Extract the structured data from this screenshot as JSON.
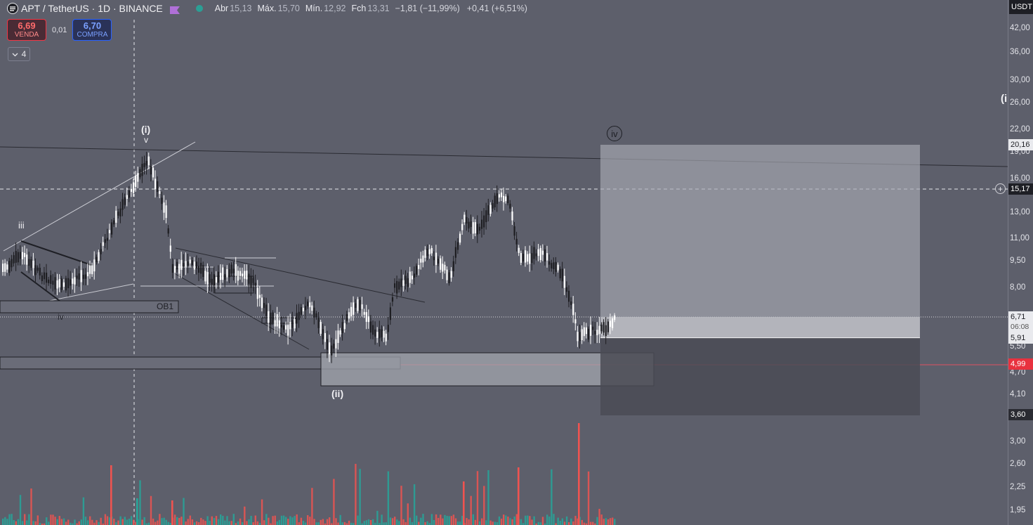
{
  "header": {
    "title": "APT / TetherUS · 1D · BINANCE",
    "ohlc": [
      {
        "k": "Abr",
        "v": "15,13"
      },
      {
        "k": "Máx.",
        "v": "15,70"
      },
      {
        "k": "Mín.",
        "v": "12,92"
      },
      {
        "k": "Fch",
        "v": "13,31"
      }
    ],
    "change": "−1,81 (−11,99%)",
    "change2": "+0,41 (+6,51%)"
  },
  "trade": {
    "sell_price": "6,69",
    "sell_label": "VENDA",
    "spread": "0,01",
    "buy_price": "6,70",
    "buy_label": "COMPRA"
  },
  "indicators_toggle": {
    "count": "4"
  },
  "price_axis": {
    "currency": "USDT",
    "ticks": [
      "42,00",
      "36,00",
      "30,00",
      "26,00",
      "22,00",
      "19,00",
      "16,00",
      "13,00",
      "11,00",
      "9,50",
      "8,00",
      "5,50",
      "4,70",
      "4,10",
      "3,00",
      "2,60",
      "2,25",
      "1,95"
    ],
    "tags": [
      {
        "text": "20,16",
        "style": "light"
      },
      {
        "text": "15,17",
        "style": "dark"
      },
      {
        "text": "6,71",
        "style": "light"
      },
      {
        "text": "06:08",
        "style": "light-sub"
      },
      {
        "text": "5,91",
        "style": "light"
      },
      {
        "text": "4,99",
        "style": "red"
      },
      {
        "text": "3,60",
        "style": "dark"
      }
    ]
  },
  "annotations": {
    "wave_i": "(i)",
    "wave_i_marker": "v",
    "wave_iii_small": "iii",
    "wave_iv_small": "iv",
    "wave_ii": "(ii)",
    "wave_iv_circle": "iv",
    "ob_label": "OB1",
    "edge_label": "(i"
  },
  "colors": {
    "background": "#5d5f6b",
    "up": "#26a69a",
    "down": "#ef5350",
    "candle_up": "#ffffff",
    "candle_down": "#1e1e22"
  }
}
